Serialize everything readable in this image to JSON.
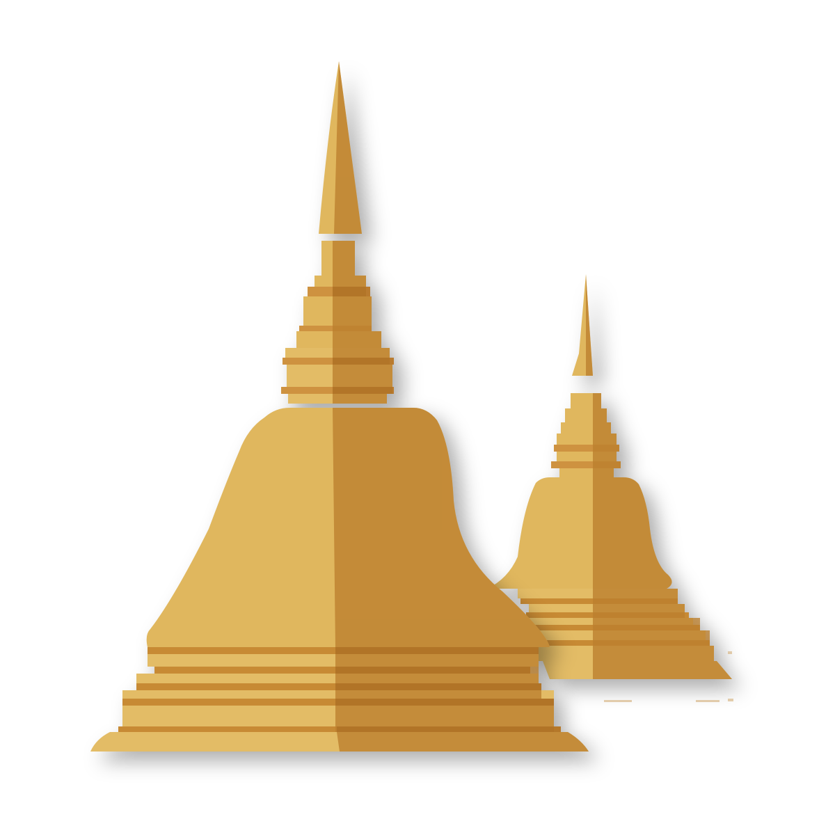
{
  "illustration": {
    "subject": "golden-stupas-icon",
    "count": 2,
    "colors": {
      "lit_face": "#E0B75E",
      "shaded_face": "#BC7F2E",
      "band_dark": "#C78A34",
      "band_light": "#E3BC66",
      "background": "#FFFFFF"
    }
  }
}
